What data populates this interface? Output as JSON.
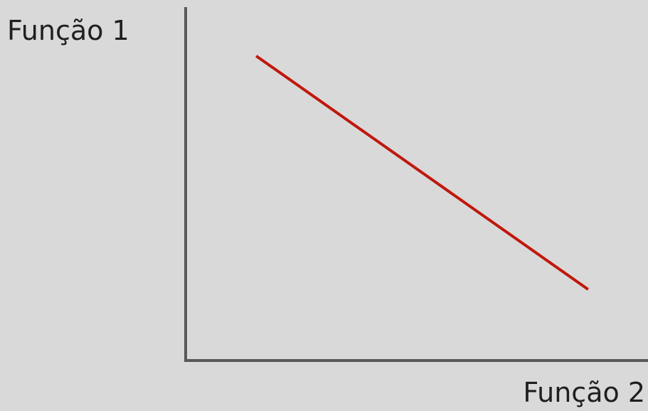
{
  "chart_data": {
    "type": "line",
    "title": "",
    "xlabel": "Função 2",
    "ylabel": "Função 1",
    "xlim": [
      0,
      100
    ],
    "ylim": [
      0,
      100
    ],
    "grid": false,
    "series": [
      {
        "x": [
          15,
          87
        ],
        "y": [
          87,
          20
        ]
      }
    ],
    "colors": {
      "background": "#d9d9d9",
      "axis": "#595959",
      "line": "#c0180c"
    }
  }
}
